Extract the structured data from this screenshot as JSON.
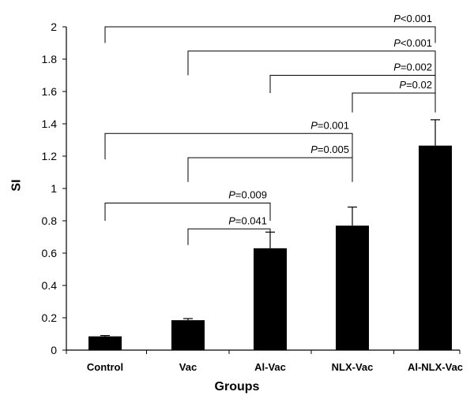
{
  "chart_data": {
    "type": "bar",
    "title": "",
    "xlabel": "Groups",
    "ylabel": "SI",
    "ylim": [
      0,
      2
    ],
    "yticks": [
      "0",
      "0.2",
      "0.4",
      "0.6",
      "0.8",
      "1",
      "1.2",
      "1.4",
      "1.6",
      "1.8",
      "2"
    ],
    "categories": [
      "Control",
      "Vac",
      "Al-Vac",
      "NLX-Vac",
      "Al-NLX-Vac"
    ],
    "values": [
      0.085,
      0.185,
      0.63,
      0.77,
      1.265
    ],
    "error_upper": [
      0.09,
      0.195,
      0.73,
      0.885,
      1.425
    ],
    "bar_color": "#000000",
    "grid": false,
    "significance": [
      {
        "from": 0,
        "to": 4,
        "label": "P<0.001",
        "level": 2.0,
        "foot_from": 1.9
      },
      {
        "from": 1,
        "to": 4,
        "label": "P<0.001",
        "level": 1.85,
        "foot_from": 1.7
      },
      {
        "from": 2,
        "to": 4,
        "label": "P=0.002",
        "level": 1.7,
        "foot_from": 1.59
      },
      {
        "from": 3,
        "to": 4,
        "label": "P=0.02",
        "level": 1.59,
        "foot_from": 1.47
      },
      {
        "from": 0,
        "to": 3,
        "label": "P=0.001",
        "level": 1.34,
        "foot_from": 1.18
      },
      {
        "from": 1,
        "to": 3,
        "label": "P=0.005",
        "level": 1.19,
        "foot_from": 1.04
      },
      {
        "from": 0,
        "to": 2,
        "label": "P=0.009",
        "level": 0.91,
        "foot_from": 0.8
      },
      {
        "from": 1,
        "to": 2,
        "label": "P=0.041",
        "level": 0.75,
        "foot_from": 0.65
      }
    ]
  }
}
